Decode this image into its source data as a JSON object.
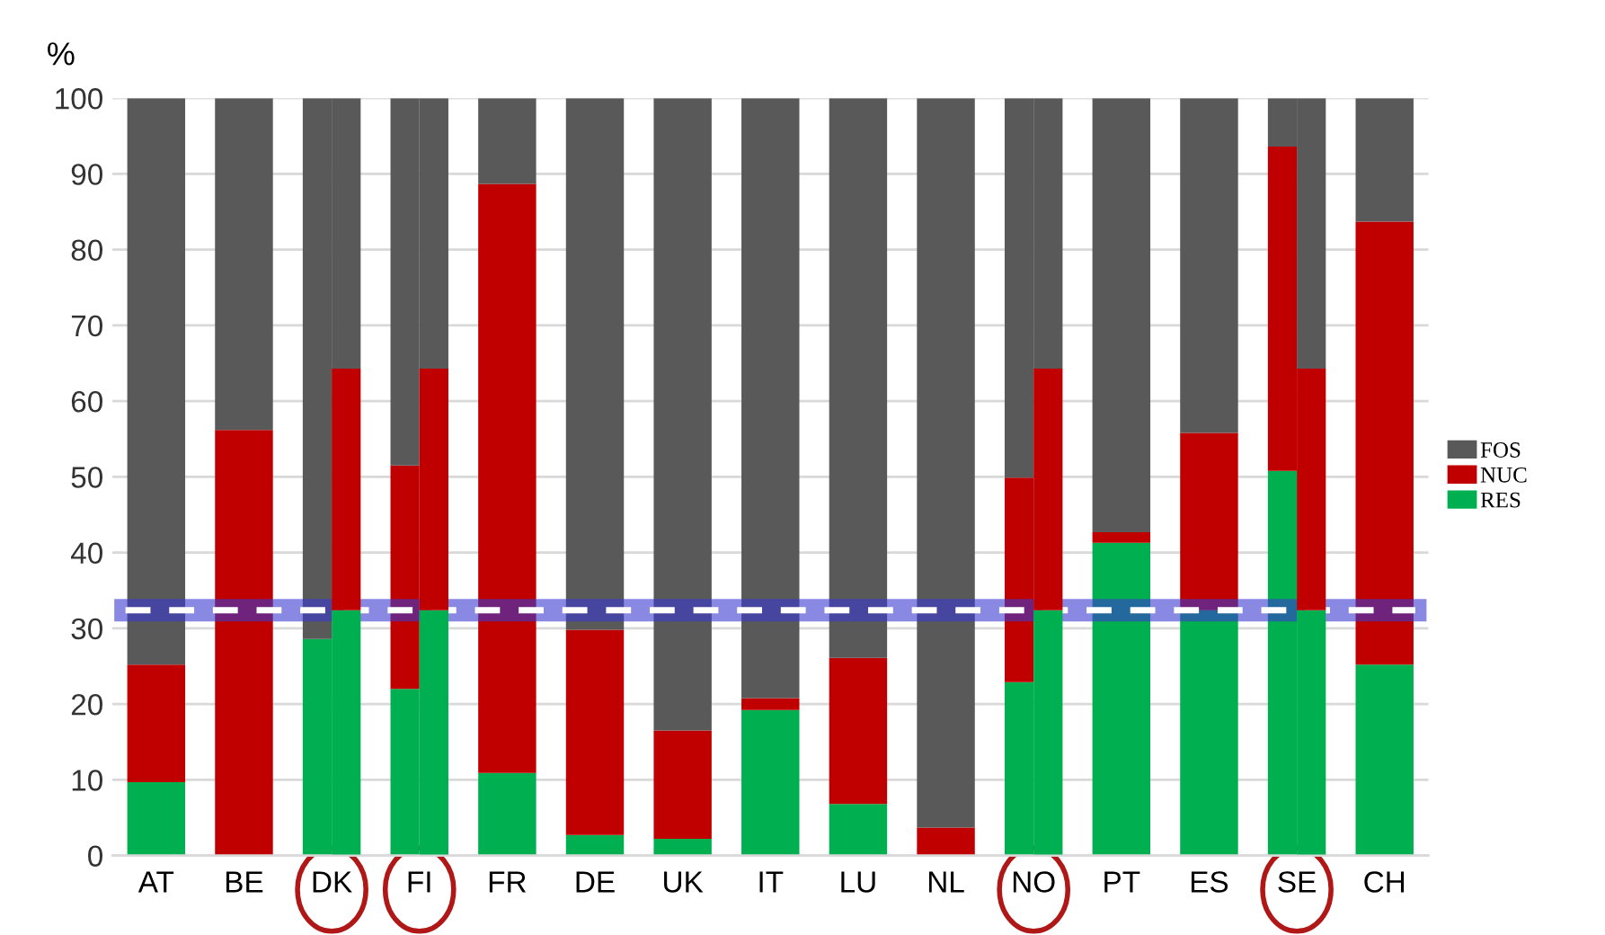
{
  "chart_data": [
    {
      "type": "bar",
      "stacked": true,
      "ylabel": "%",
      "categories": [
        "AT",
        "BE",
        "DK",
        "FI",
        "FR",
        "DE",
        "UK",
        "IT",
        "LU",
        "NL",
        "NO",
        "PT",
        "ES",
        "SE",
        "CH"
      ],
      "series": [
        {
          "name": "RES",
          "color": "#00b050",
          "values": [
            9.7,
            0,
            28.6,
            22.0,
            10.9,
            2.7,
            2.2,
            19.2,
            6.8,
            0,
            22.9,
            41.3,
            32.4,
            50.8,
            25.2
          ]
        },
        {
          "name": "NUC",
          "color": "#c00000",
          "values": [
            15.5,
            56.2,
            0,
            29.5,
            77.8,
            27.1,
            14.3,
            1.6,
            19.3,
            3.7,
            27.0,
            1.4,
            23.4,
            42.8,
            58.5
          ]
        },
        {
          "name": "FOS",
          "color": "#595959",
          "values": [
            74.8,
            43.8,
            71.4,
            48.5,
            11.3,
            70.2,
            83.5,
            79.2,
            73.9,
            96.3,
            50.1,
            57.3,
            44.2,
            6.4,
            16.3
          ]
        }
      ],
      "ylim": [
        0,
        100
      ],
      "yticks": [
        0,
        10,
        20,
        30,
        40,
        50,
        60,
        70,
        80,
        90,
        100
      ],
      "grid": "y",
      "legend": "right",
      "ref_lines": [
        {
          "axis": "y",
          "value": 32.4,
          "color": "#3a3ad0",
          "line_style": "solid"
        },
        {
          "axis": "y",
          "value": 32.4,
          "color": "#ffffff",
          "line_style": "dashed"
        }
      ]
    },
    {
      "type": "bar",
      "stacked": true,
      "categories": [
        null,
        null,
        null,
        null,
        null,
        null,
        null,
        null,
        null,
        null,
        null,
        null,
        null,
        null,
        null
      ],
      "series": [
        {
          "color": "#00b050",
          "values": [
            null,
            null,
            32.4,
            32.4,
            null,
            null,
            null,
            null,
            null,
            null,
            32.4,
            null,
            null,
            32.4,
            null
          ]
        },
        {
          "color": "#c00000",
          "values": [
            null,
            null,
            31.9,
            31.9,
            null,
            null,
            null,
            null,
            null,
            null,
            31.9,
            null,
            null,
            31.9,
            null
          ]
        },
        {
          "color": "#595959",
          "values": [
            null,
            null,
            35.7,
            35.7,
            null,
            null,
            null,
            null,
            null,
            null,
            35.7,
            null,
            null,
            35.7,
            null
          ]
        }
      ],
      "ylim": [
        0,
        100
      ]
    }
  ]
}
